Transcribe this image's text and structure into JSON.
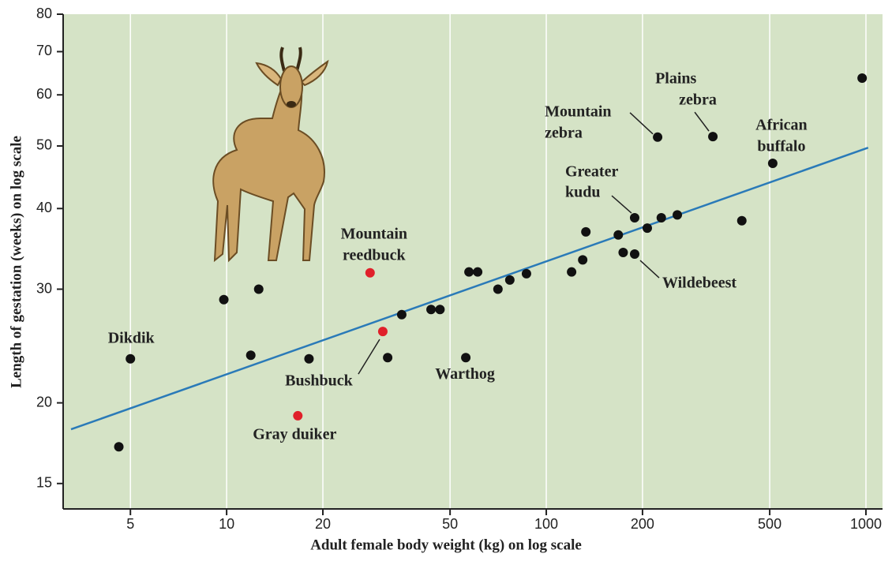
{
  "chart_data": {
    "type": "scatter",
    "xlabel": "Adult female body weight (kg) on log scale",
    "ylabel": "Length of gestation (weeks) on log scale",
    "xscale": "log",
    "yscale": "log",
    "xlim": [
      3.08,
      1127
    ],
    "ylim": [
      13.7,
      80
    ],
    "xticks": [
      5,
      10,
      20,
      50,
      100,
      200,
      500,
      1000
    ],
    "yticks": [
      15,
      20,
      30,
      40,
      50,
      60,
      70,
      80
    ],
    "grid": "x",
    "x": [
      5,
      4.6,
      9.8,
      12.6,
      11.9,
      18.1,
      16.7,
      28.1,
      30.8,
      31.9,
      35.3,
      43.6,
      46.5,
      56,
      57.3,
      61,
      70.6,
      76.9,
      86.7,
      120,
      130,
      133,
      168,
      174,
      189,
      189,
      207,
      229,
      257,
      409,
      223,
      332,
      511,
      973
    ],
    "values": [
      23.4,
      17.1,
      28.9,
      30,
      23.7,
      23.4,
      19.1,
      31.8,
      25.8,
      23.5,
      27.4,
      27.9,
      27.9,
      23.5,
      31.9,
      31.9,
      30,
      31,
      31.7,
      31.9,
      33.3,
      36.8,
      36.4,
      34.2,
      34,
      38.7,
      37.3,
      38.7,
      39.1,
      38.3,
      51.6,
      51.7,
      47,
      63.7
    ],
    "colors": [
      "#111",
      "#111",
      "#111",
      "#111",
      "#111",
      "#111",
      "#e0202a",
      "#e0202a",
      "#e0202a",
      "#111",
      "#111",
      "#111",
      "#111",
      "#111",
      "#111",
      "#111",
      "#111",
      "#111",
      "#111",
      "#111",
      "#111",
      "#111",
      "#111",
      "#111",
      "#111",
      "#111",
      "#111",
      "#111",
      "#111",
      "#111",
      "#111",
      "#111",
      "#111",
      "#111"
    ],
    "trend": {
      "x": [
        3.26,
        1016
      ],
      "y": [
        18.2,
        49.7
      ],
      "color": "#2a7ab8"
    },
    "annotations": [
      {
        "lines": [
          "Dikdik"
        ],
        "point": 0
      },
      {
        "lines": [
          "Gray duiker"
        ],
        "point": 6
      },
      {
        "lines": [
          "Mountain",
          "reedbuck"
        ],
        "point": 7
      },
      {
        "lines": [
          "Bushbuck"
        ],
        "point": 8
      },
      {
        "lines": [
          "Warthog"
        ],
        "point": 13
      },
      {
        "lines": [
          "Mountain",
          "zebra"
        ],
        "point": 30
      },
      {
        "lines": [
          "Plains",
          "zebra"
        ],
        "point": 31
      },
      {
        "lines": [
          "African",
          "buffalo"
        ],
        "point": 32
      },
      {
        "lines": [
          "Greater",
          "kudu"
        ],
        "point": 25
      },
      {
        "lines": [
          "Wildebeest"
        ],
        "point": 24
      }
    ]
  }
}
